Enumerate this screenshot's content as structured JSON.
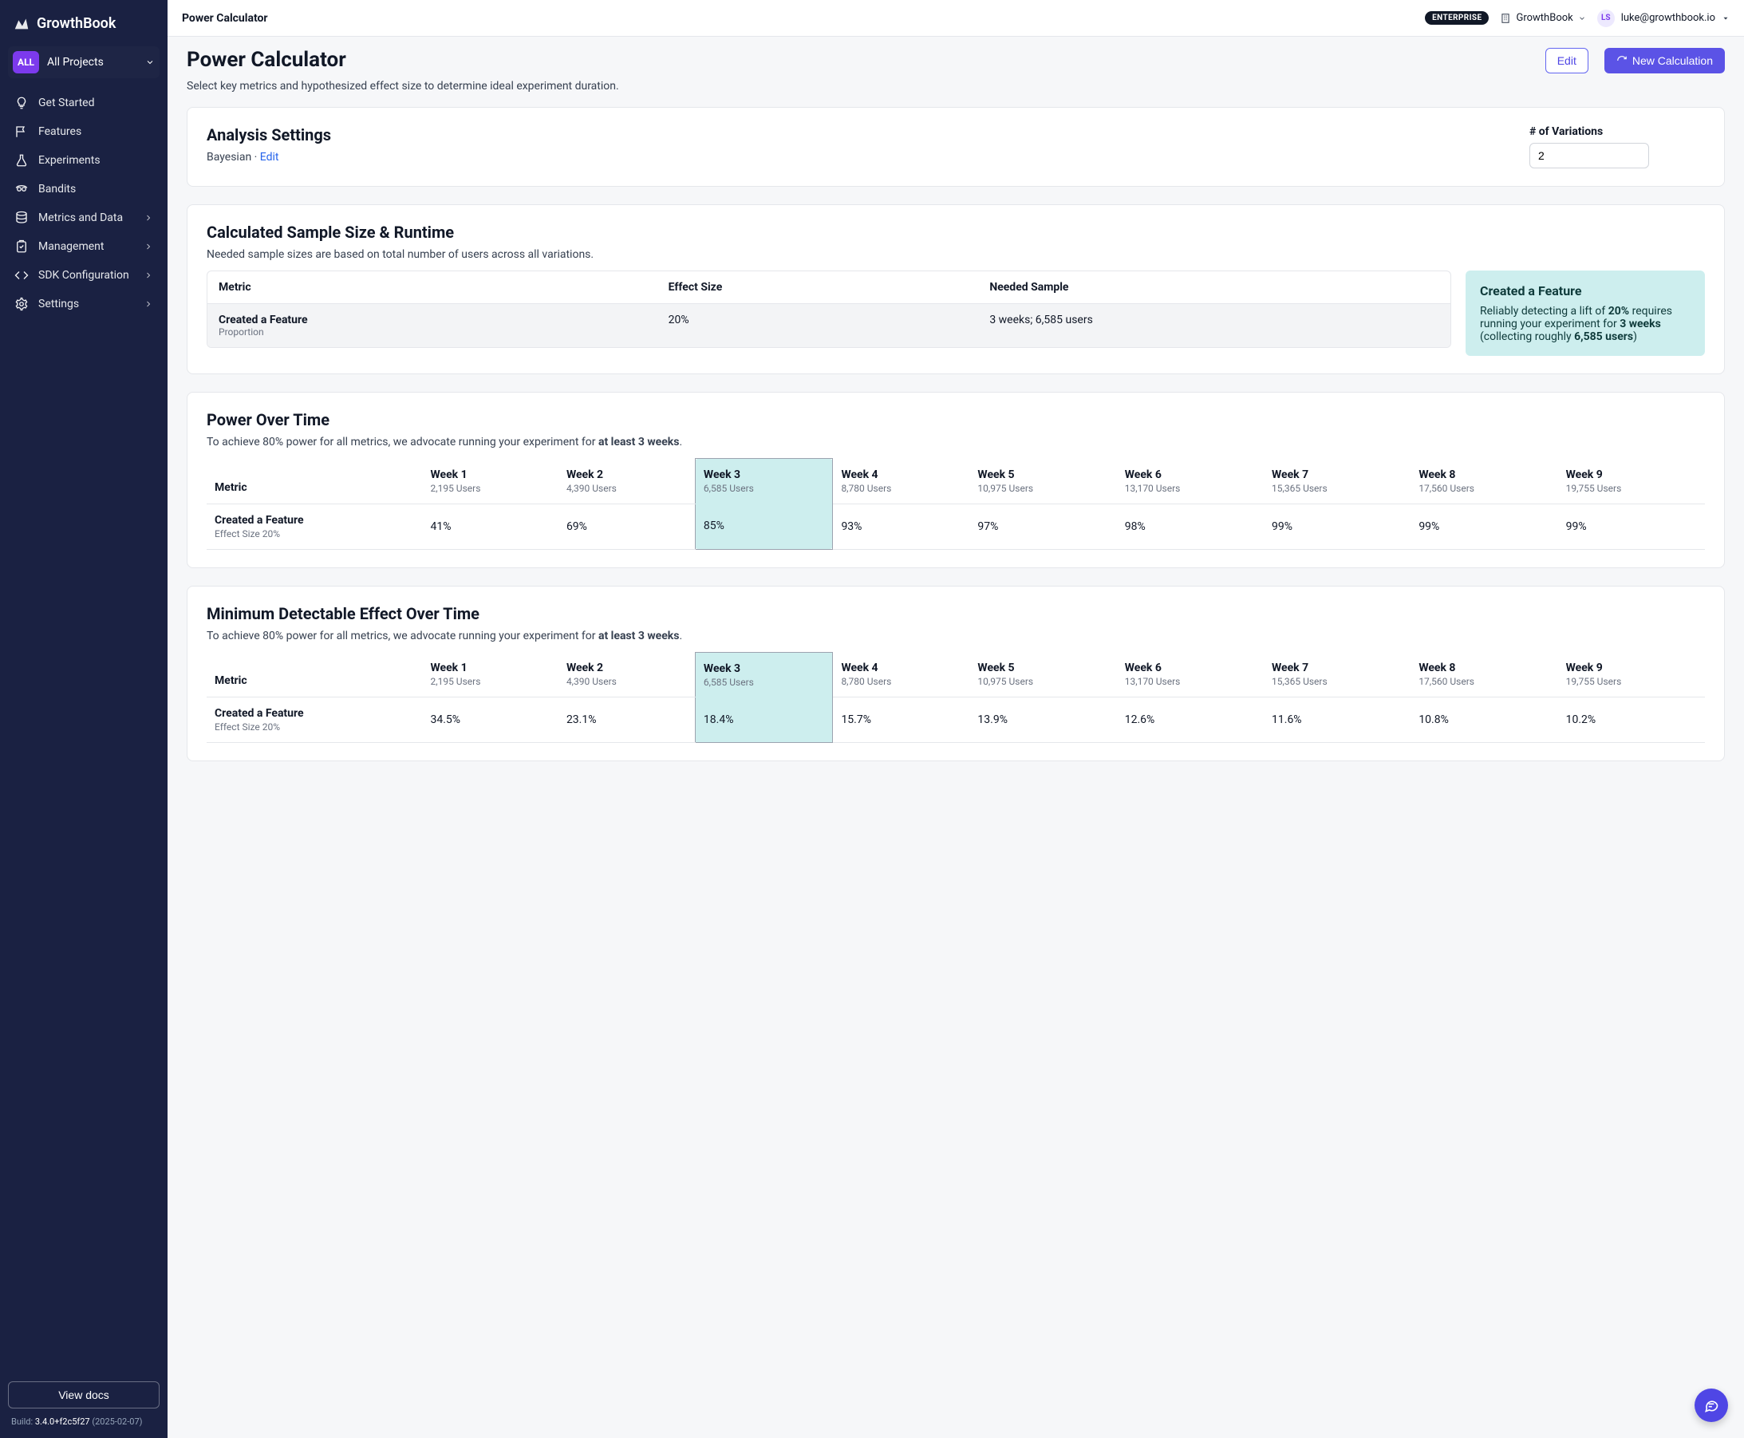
{
  "brand": "GrowthBook",
  "projectBadge": "ALL",
  "projectLabel": "All Projects",
  "nav": {
    "getStarted": "Get Started",
    "features": "Features",
    "experiments": "Experiments",
    "bandits": "Bandits",
    "metrics": "Metrics and Data",
    "management": "Management",
    "sdk": "SDK Configuration",
    "settings": "Settings"
  },
  "viewDocs": "View docs",
  "build": {
    "label": "Build: ",
    "version": "3.4.0+f2c5f27",
    "date": " (2025-02-07)"
  },
  "topbar": {
    "title": "Power Calculator",
    "enterprise": "ENTERPRISE",
    "org": "GrowthBook",
    "avatar": "LS",
    "user": "luke@growthbook.io"
  },
  "page": {
    "title": "Power Calculator",
    "subtitle": "Select key metrics and hypothesized effect size to determine ideal experiment duration.",
    "editBtn": "Edit",
    "newBtn": "New Calculation"
  },
  "analysis": {
    "heading": "Analysis Settings",
    "engine": "Bayesian",
    "editLink": "Edit",
    "variationsLabel": "# of Variations",
    "variationsValue": "2"
  },
  "sample": {
    "heading": "Calculated Sample Size & Runtime",
    "sub": "Needed sample sizes are based on total number of users across all variations.",
    "cols": {
      "metric": "Metric",
      "effect": "Effect Size",
      "needed": "Needed Sample"
    },
    "row": {
      "metric": "Created a Feature",
      "metricSub": "Proportion",
      "effect": "20%",
      "needed": "3 weeks; 6,585 users"
    },
    "callout": {
      "title": "Created a Feature",
      "pre": "Reliably detecting a lift of ",
      "lift": "20%",
      "mid1": " requires running your experiment for ",
      "dur": "3 weeks",
      "mid2": " (collecting roughly ",
      "users": "6,585 users",
      "post": ")"
    }
  },
  "power": {
    "heading": "Power Over Time",
    "subPre": "To achieve 80% power for all metrics, we advocate running your experiment for ",
    "subBold": "at least 3 weeks",
    "subPost": ".",
    "metricLabel": "Metric",
    "weeks": [
      {
        "label": "Week 1",
        "users": "2,195 Users"
      },
      {
        "label": "Week 2",
        "users": "4,390 Users"
      },
      {
        "label": "Week 3",
        "users": "6,585 Users"
      },
      {
        "label": "Week 4",
        "users": "8,780 Users"
      },
      {
        "label": "Week 5",
        "users": "10,975 Users"
      },
      {
        "label": "Week 6",
        "users": "13,170 Users"
      },
      {
        "label": "Week 7",
        "users": "15,365 Users"
      },
      {
        "label": "Week 8",
        "users": "17,560 Users"
      },
      {
        "label": "Week 9",
        "users": "19,755 Users"
      }
    ],
    "rowMetric": "Created a Feature",
    "rowMetricSub": "Effect Size 20%",
    "values": [
      "41%",
      "69%",
      "85%",
      "93%",
      "97%",
      "98%",
      "99%",
      "99%",
      "99%"
    ],
    "highlightIndex": 2
  },
  "mde": {
    "heading": "Minimum Detectable Effect Over Time",
    "subPre": "To achieve 80% power for all metrics, we advocate running your experiment for ",
    "subBold": "at least 3 weeks",
    "subPost": ".",
    "metricLabel": "Metric",
    "weeks": [
      {
        "label": "Week 1",
        "users": "2,195 Users"
      },
      {
        "label": "Week 2",
        "users": "4,390 Users"
      },
      {
        "label": "Week 3",
        "users": "6,585 Users"
      },
      {
        "label": "Week 4",
        "users": "8,780 Users"
      },
      {
        "label": "Week 5",
        "users": "10,975 Users"
      },
      {
        "label": "Week 6",
        "users": "13,170 Users"
      },
      {
        "label": "Week 7",
        "users": "15,365 Users"
      },
      {
        "label": "Week 8",
        "users": "17,560 Users"
      },
      {
        "label": "Week 9",
        "users": "19,755 Users"
      }
    ],
    "rowMetric": "Created a Feature",
    "rowMetricSub": "Effect Size 20%",
    "values": [
      "34.5%",
      "23.1%",
      "18.4%",
      "15.7%",
      "13.9%",
      "12.6%",
      "11.6%",
      "10.8%",
      "10.2%"
    ],
    "highlightIndex": 2
  },
  "colors": {
    "sidebar": "#1a2142",
    "primary": "#5b53e6",
    "highlight": "#cdeeee"
  }
}
